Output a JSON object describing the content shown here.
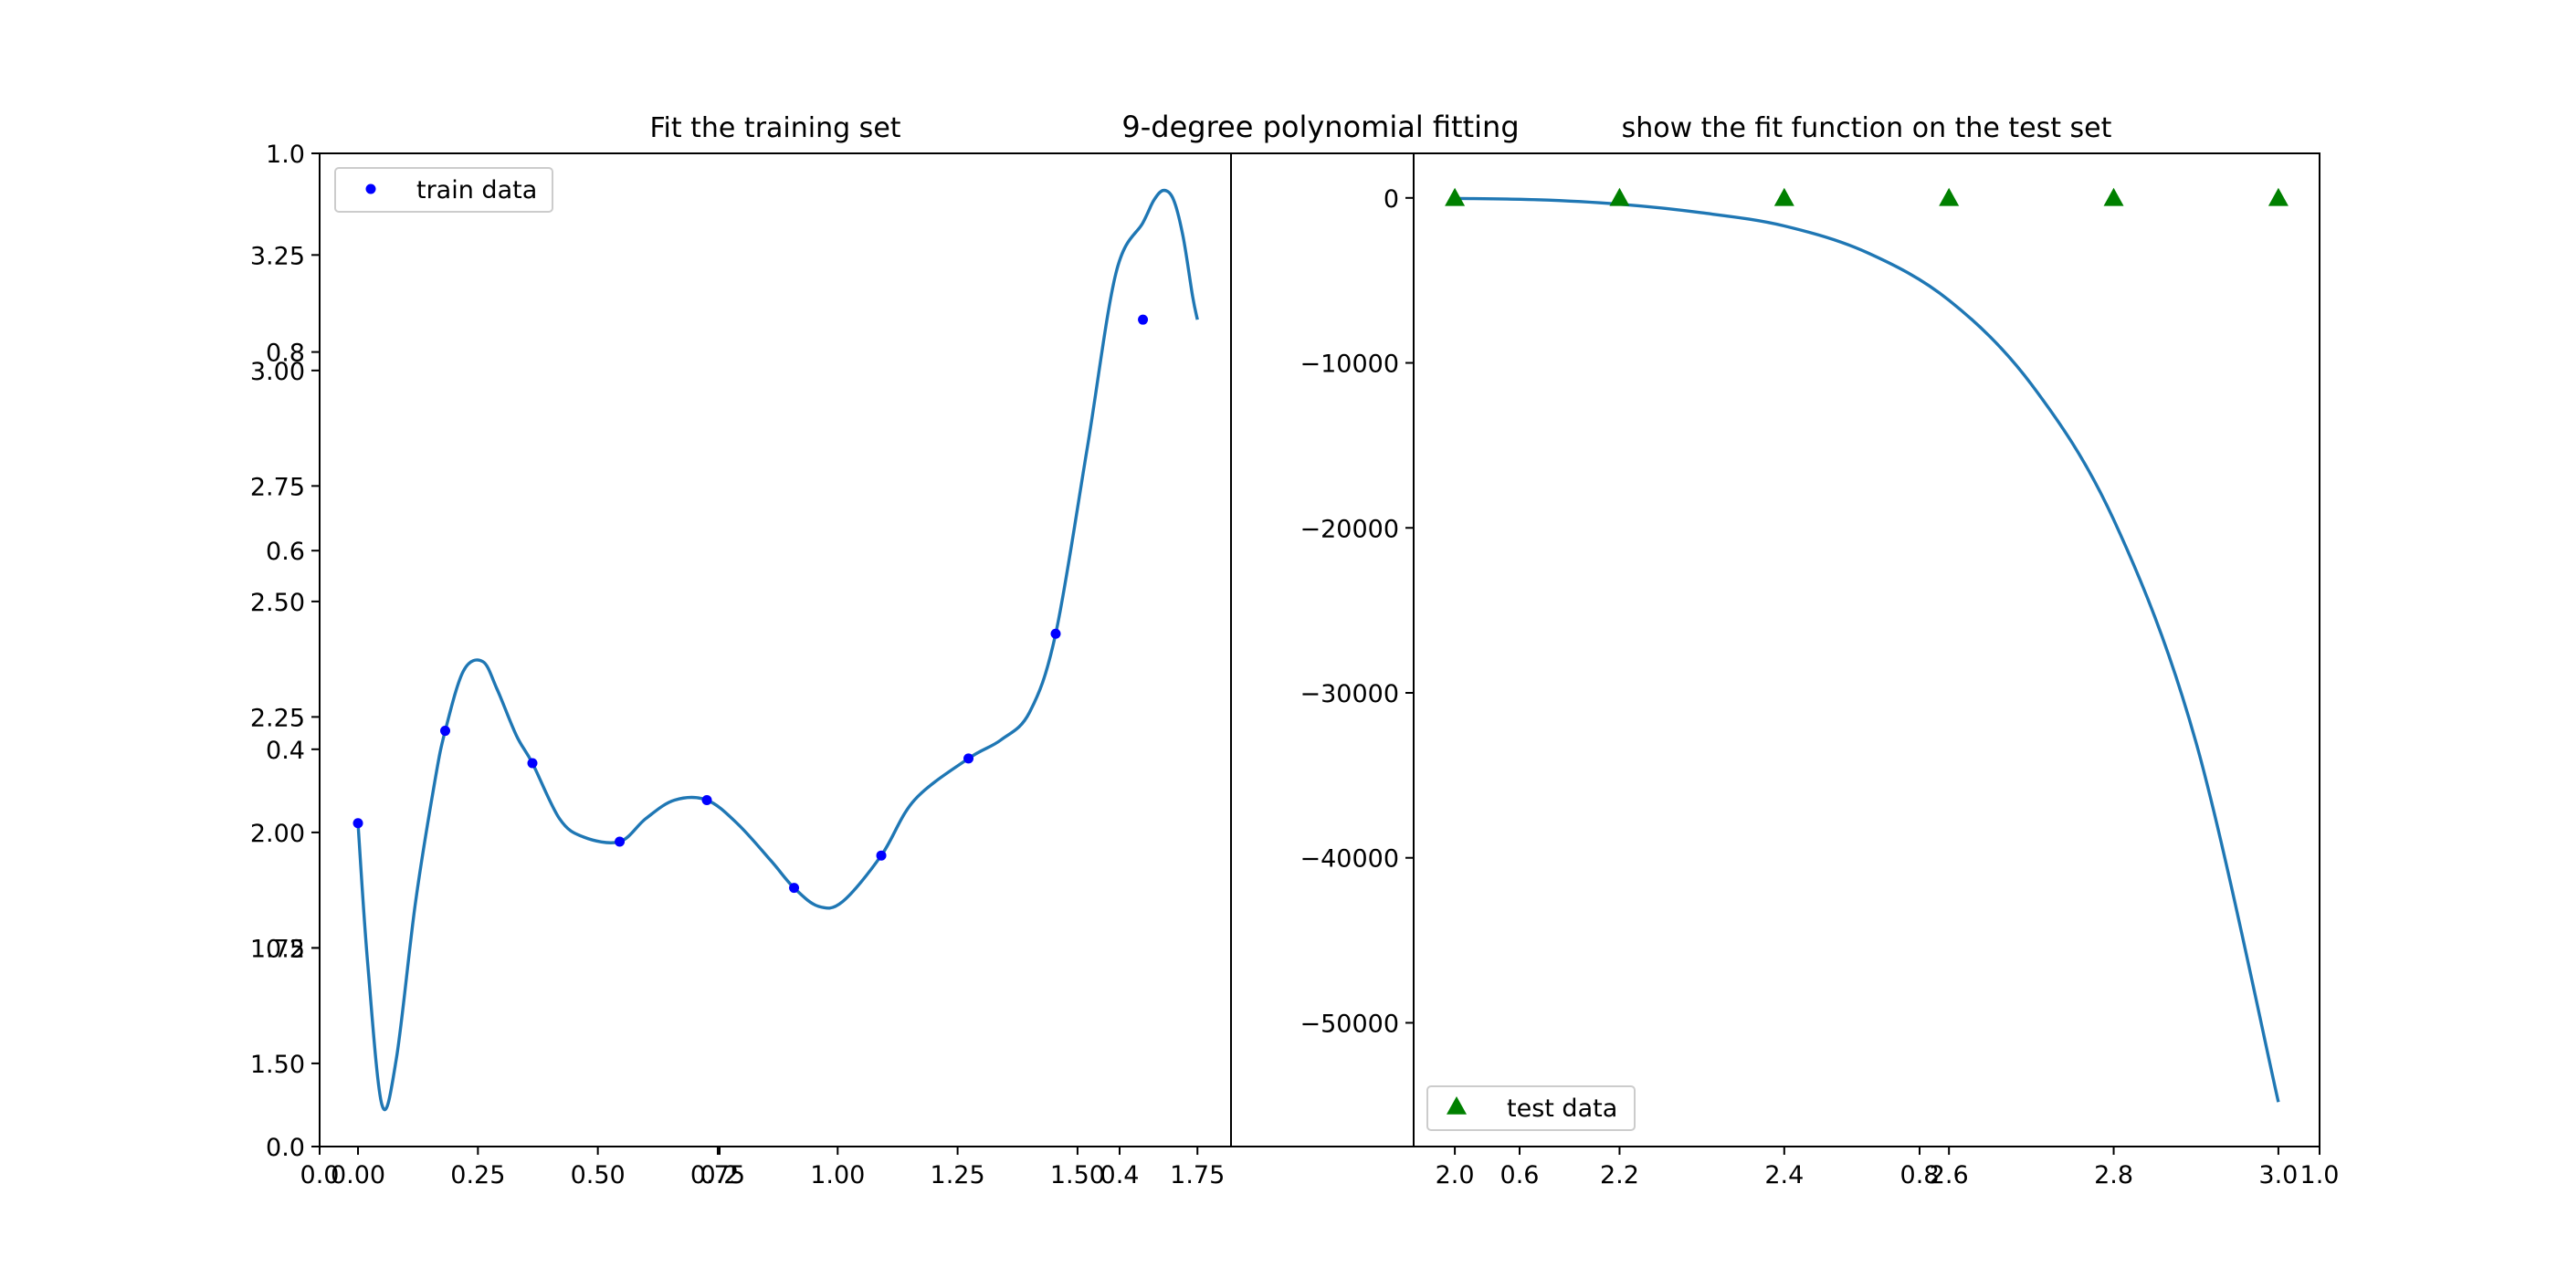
{
  "figure": {
    "suptitle": "9-degree polynomial fitting"
  },
  "colors": {
    "fit_line": "#1f77b4",
    "train_marker": "#0000ff",
    "test_marker": "#008000",
    "axes": "#000000",
    "legend_border": "#cccccc"
  },
  "outer_axis": {
    "xlim": [
      0.0,
      1.0
    ],
    "ylim": [
      0.0,
      1.0
    ],
    "xticks": [
      "0.0",
      "0.2",
      "0.4",
      "0.6",
      "0.8",
      "1.0"
    ],
    "yticks": [
      "0.0",
      "0.2",
      "0.4",
      "0.6",
      "0.8",
      "1.0"
    ]
  },
  "chart_data": [
    {
      "type": "line",
      "title": "Fit the training set",
      "xlabel": "",
      "ylabel": "",
      "xlim": [
        -0.08,
        1.82
      ],
      "ylim": [
        1.32,
        3.47
      ],
      "xticks": [
        "0.00",
        "0.25",
        "0.50",
        "0.75",
        "1.00",
        "1.25",
        "1.50",
        "1.75"
      ],
      "yticks": [
        "1.50",
        "1.75",
        "2.00",
        "2.25",
        "2.50",
        "2.75",
        "3.00",
        "3.25"
      ],
      "grid": false,
      "legend": {
        "position": "top-left",
        "entries": [
          "train data"
        ]
      },
      "scatter": {
        "name": "train data",
        "marker": "circle",
        "x": [
          0.0,
          0.1818,
          0.3636,
          0.5455,
          0.7273,
          0.9091,
          1.0909,
          1.2727,
          1.4545,
          1.6364
        ],
        "y": [
          2.02,
          2.22,
          2.15,
          1.98,
          2.07,
          1.88,
          1.95,
          2.16,
          2.43,
          3.11
        ]
      },
      "fit_curve": {
        "x": [
          0.0,
          0.02,
          0.05,
          0.08,
          0.12,
          0.16,
          0.1818,
          0.22,
          0.26,
          0.29,
          0.33,
          0.3636,
          0.42,
          0.47,
          0.5455,
          0.6,
          0.66,
          0.7273,
          0.79,
          0.86,
          0.9091,
          0.96,
          1.01,
          1.0909,
          1.16,
          1.2727,
          1.34,
          1.4,
          1.4545,
          1.52,
          1.58,
          1.6364,
          1.66,
          1.68,
          1.7,
          1.72,
          1.74,
          1.75
        ],
        "y": [
          2.02,
          1.72,
          1.41,
          1.51,
          1.85,
          2.11,
          2.22,
          2.35,
          2.37,
          2.31,
          2.21,
          2.15,
          2.03,
          1.99,
          1.98,
          2.03,
          2.07,
          2.07,
          2.02,
          1.94,
          1.88,
          1.84,
          1.85,
          1.95,
          2.07,
          2.16,
          2.2,
          2.26,
          2.43,
          2.83,
          3.21,
          3.32,
          3.37,
          3.39,
          3.37,
          3.29,
          3.16,
          3.11
        ]
      }
    },
    {
      "type": "line",
      "title": "show the fit function on the test set",
      "xlabel": "",
      "ylabel": "",
      "xlim": [
        1.95,
        3.05
      ],
      "ylim": [
        -57500,
        2700
      ],
      "xticks": [
        "2.0",
        "2.2",
        "2.4",
        "2.6",
        "2.8",
        "3.0"
      ],
      "yticks": [
        "0",
        "−10000",
        "−20000",
        "−30000",
        "−40000",
        "−50000"
      ],
      "grid": false,
      "legend": {
        "position": "bottom-left",
        "entries": [
          "test data"
        ]
      },
      "scatter": {
        "name": "test data",
        "marker": "triangle",
        "x": [
          2.0,
          2.2,
          2.4,
          2.6,
          2.8,
          3.0
        ],
        "y": [
          0,
          0,
          0,
          0,
          0,
          0
        ]
      },
      "fit_curve": {
        "x": [
          2.0,
          2.1,
          2.2,
          2.3,
          2.4,
          2.5,
          2.6,
          2.7,
          2.8,
          2.9,
          3.0
        ],
        "y": [
          -30,
          -110,
          -380,
          -900,
          -1700,
          -3300,
          -6200,
          -11300,
          -19500,
          -33000,
          -54800
        ]
      }
    }
  ]
}
